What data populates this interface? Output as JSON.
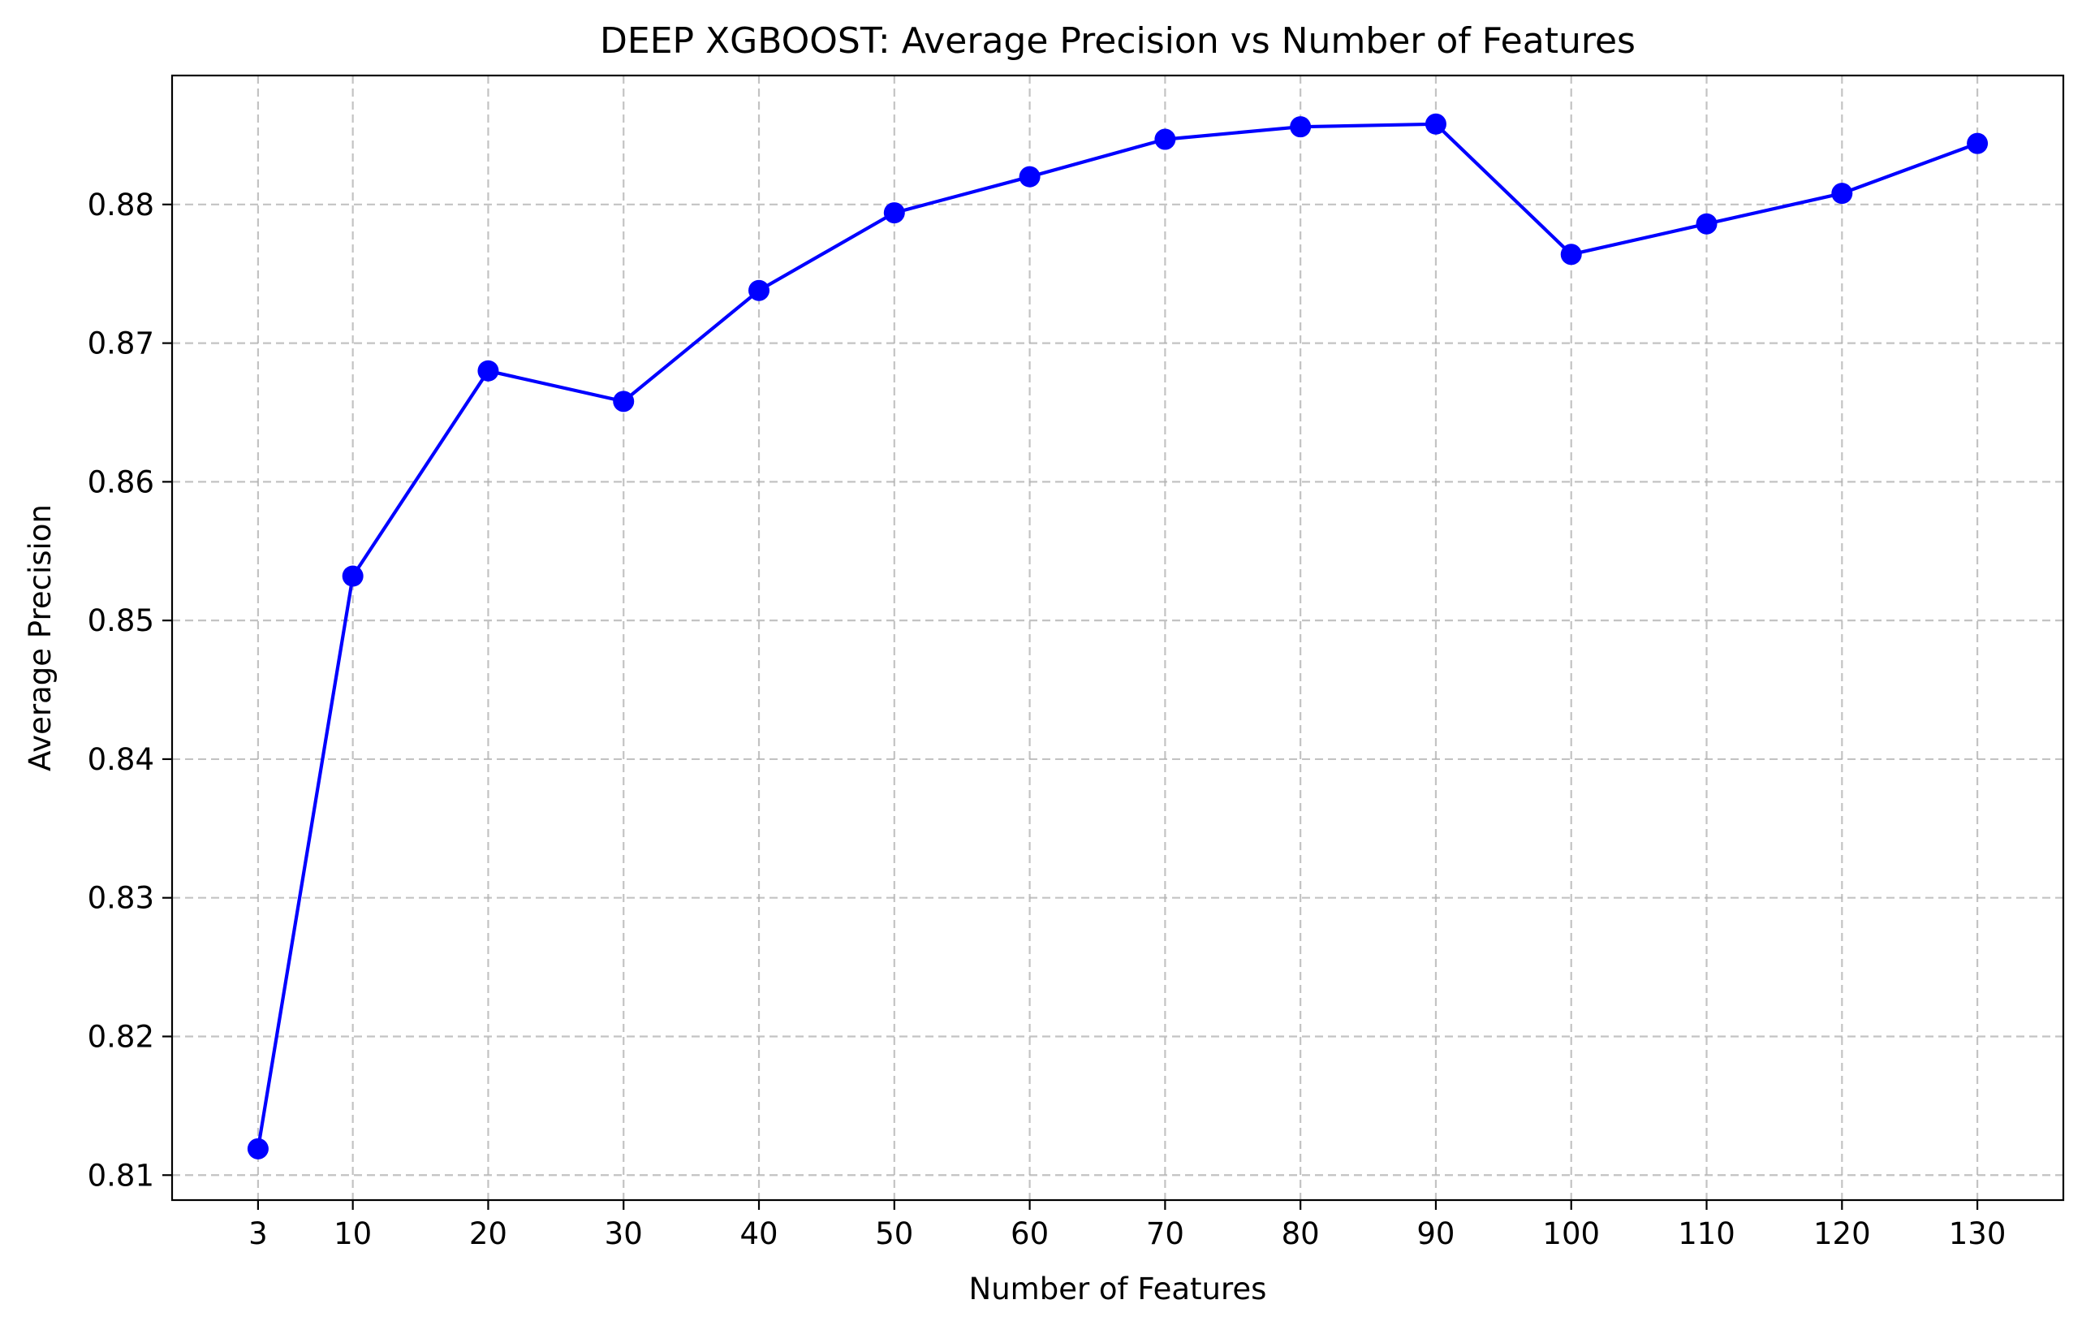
{
  "chart_data": {
    "type": "line",
    "title": "DEEP XGBOOST: Average Precision vs Number of Features",
    "xlabel": "Number of Features",
    "ylabel": "Average Precision",
    "xticks": [
      3,
      10,
      20,
      30,
      40,
      50,
      60,
      70,
      80,
      90,
      100,
      110,
      120,
      130
    ],
    "xtick_labels": [
      "3",
      "10",
      "20",
      "30",
      "40",
      "50",
      "60",
      "70",
      "80",
      "90",
      "100",
      "110",
      "120",
      "130"
    ],
    "yticks": [
      0.81,
      0.82,
      0.83,
      0.84,
      0.85,
      0.86,
      0.87,
      0.88
    ],
    "ytick_labels": [
      "0.81",
      "0.82",
      "0.83",
      "0.84",
      "0.85",
      "0.86",
      "0.87",
      "0.88"
    ],
    "xlim": [
      -3.35,
      136.35
    ],
    "ylim": [
      0.8082,
      0.8893
    ],
    "grid": true,
    "series": [
      {
        "color": "#0000ff",
        "marker": "circle",
        "x": [
          3,
          10,
          20,
          30,
          40,
          50,
          60,
          70,
          80,
          90,
          100,
          110,
          120,
          130
        ],
        "y": [
          0.8119,
          0.8532,
          0.868,
          0.8658,
          0.8738,
          0.8794,
          0.882,
          0.8847,
          0.8856,
          0.8858,
          0.8764,
          0.8786,
          0.8808,
          0.8844
        ]
      }
    ]
  }
}
